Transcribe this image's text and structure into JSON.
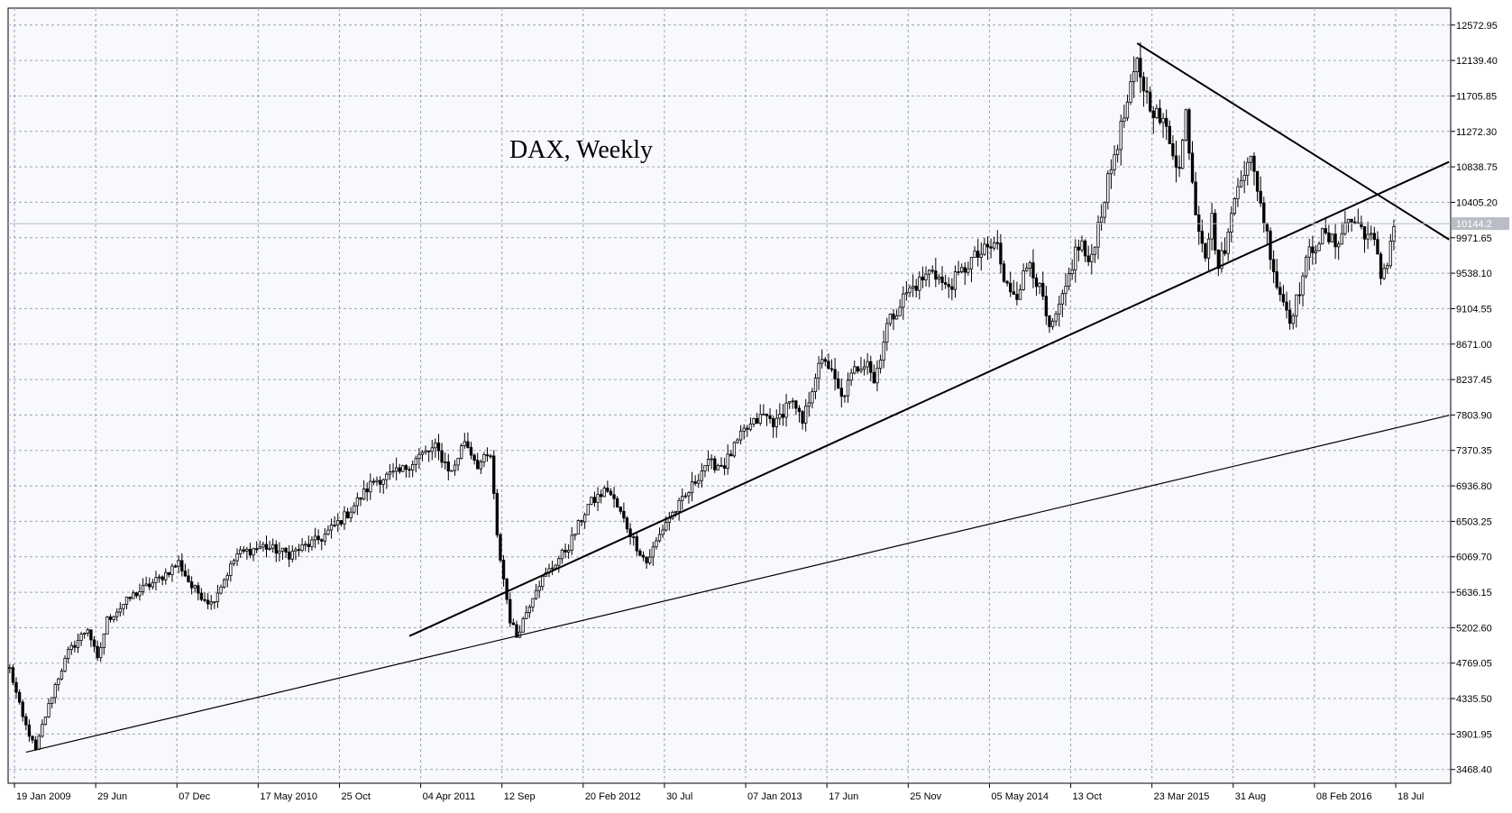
{
  "chart_data": {
    "type": "candlestick",
    "title": "DAX, Weekly",
    "current_price_label": "10144.2",
    "ylim": [
      3300,
      12780
    ],
    "y_ticks": [
      "12572.95",
      "12139.40",
      "11705.85",
      "11272.30",
      "10838.75",
      "10405.20",
      "9971.65",
      "9538.10",
      "9104.55",
      "8671.00",
      "8237.45",
      "7803.90",
      "7370.35",
      "6936.80",
      "6503.25",
      "6069.70",
      "5636.15",
      "5202.60",
      "4769.05",
      "4335.50",
      "3901.95",
      "3468.40"
    ],
    "x_ticks": [
      "19 Jan 2009",
      "29 Jun",
      "07 Dec",
      "17 May 2010",
      "25 Oct",
      "04 Apr 2011",
      "12 Sep",
      "20 Feb 2012",
      "30 Jul",
      "07 Jan 2013",
      "17 Jun",
      "25 Nov",
      "05 May 2014",
      "13 Oct",
      "23 Mar 2015",
      "31 Aug",
      "08 Feb 2016",
      "18 Jul"
    ],
    "price_path": [
      [
        0,
        4700
      ],
      [
        4,
        4100
      ],
      [
        8,
        3700
      ],
      [
        10,
        4000
      ],
      [
        14,
        4500
      ],
      [
        18,
        4900
      ],
      [
        24,
        5200
      ],
      [
        27,
        4800
      ],
      [
        30,
        5300
      ],
      [
        38,
        5600
      ],
      [
        46,
        5800
      ],
      [
        52,
        6000
      ],
      [
        56,
        5700
      ],
      [
        62,
        5500
      ],
      [
        70,
        6100
      ],
      [
        78,
        6200
      ],
      [
        86,
        6100
      ],
      [
        96,
        6300
      ],
      [
        104,
        6600
      ],
      [
        112,
        7000
      ],
      [
        120,
        7100
      ],
      [
        126,
        7300
      ],
      [
        131,
        7400
      ],
      [
        136,
        7100
      ],
      [
        140,
        7500
      ],
      [
        144,
        7200
      ],
      [
        148,
        7300
      ],
      [
        150,
        6300
      ],
      [
        154,
        5300
      ],
      [
        156,
        5100
      ],
      [
        158,
        5300
      ],
      [
        162,
        5700
      ],
      [
        166,
        5900
      ],
      [
        172,
        6200
      ],
      [
        178,
        6700
      ],
      [
        184,
        6900
      ],
      [
        188,
        6600
      ],
      [
        193,
        6200
      ],
      [
        196,
        6000
      ],
      [
        202,
        6500
      ],
      [
        208,
        6800
      ],
      [
        214,
        7200
      ],
      [
        220,
        7200
      ],
      [
        226,
        7600
      ],
      [
        232,
        7800
      ],
      [
        236,
        7700
      ],
      [
        240,
        8000
      ],
      [
        244,
        7700
      ],
      [
        248,
        8300
      ],
      [
        251,
        8500
      ],
      [
        256,
        8000
      ],
      [
        260,
        8350
      ],
      [
        264,
        8500
      ],
      [
        266,
        8200
      ],
      [
        270,
        8900
      ],
      [
        276,
        9300
      ],
      [
        282,
        9500
      ],
      [
        284,
        9600
      ],
      [
        288,
        9350
      ],
      [
        292,
        9500
      ],
      [
        296,
        9700
      ],
      [
        300,
        9800
      ],
      [
        304,
        9900
      ],
      [
        306,
        9400
      ],
      [
        310,
        9300
      ],
      [
        314,
        9700
      ],
      [
        318,
        9200
      ],
      [
        320,
        8800
      ],
      [
        324,
        9200
      ],
      [
        328,
        9800
      ],
      [
        330,
        9900
      ],
      [
        332,
        9600
      ],
      [
        336,
        10300
      ],
      [
        340,
        11000
      ],
      [
        344,
        11600
      ],
      [
        347,
        12100
      ],
      [
        350,
        11700
      ],
      [
        354,
        11400
      ],
      [
        356,
        11300
      ],
      [
        360,
        10800
      ],
      [
        362,
        11500
      ],
      [
        365,
        10300
      ],
      [
        368,
        9800
      ],
      [
        370,
        10200
      ],
      [
        372,
        9600
      ],
      [
        375,
        10000
      ],
      [
        378,
        10700
      ],
      [
        382,
        10900
      ],
      [
        384,
        10600
      ],
      [
        386,
        10200
      ],
      [
        390,
        9400
      ],
      [
        394,
        9000
      ],
      [
        396,
        9200
      ],
      [
        400,
        9800
      ],
      [
        404,
        10000
      ],
      [
        408,
        9900
      ],
      [
        412,
        10200
      ],
      [
        416,
        10100
      ],
      [
        420,
        9900
      ],
      [
        422,
        9500
      ],
      [
        424,
        9700
      ],
      [
        426,
        10144
      ]
    ],
    "trendlines": [
      {
        "from": [
          5,
          3680
        ],
        "to": [
          443,
          7800
        ]
      },
      {
        "from": [
          123,
          5100
        ],
        "to": [
          443,
          10900
        ]
      },
      {
        "from": [
          347,
          12350
        ],
        "to": [
          443,
          9950
        ]
      }
    ],
    "grid": true,
    "candle_color": "#000000",
    "background": "#f8f9fd",
    "grid_color": "#a0a4ae"
  }
}
